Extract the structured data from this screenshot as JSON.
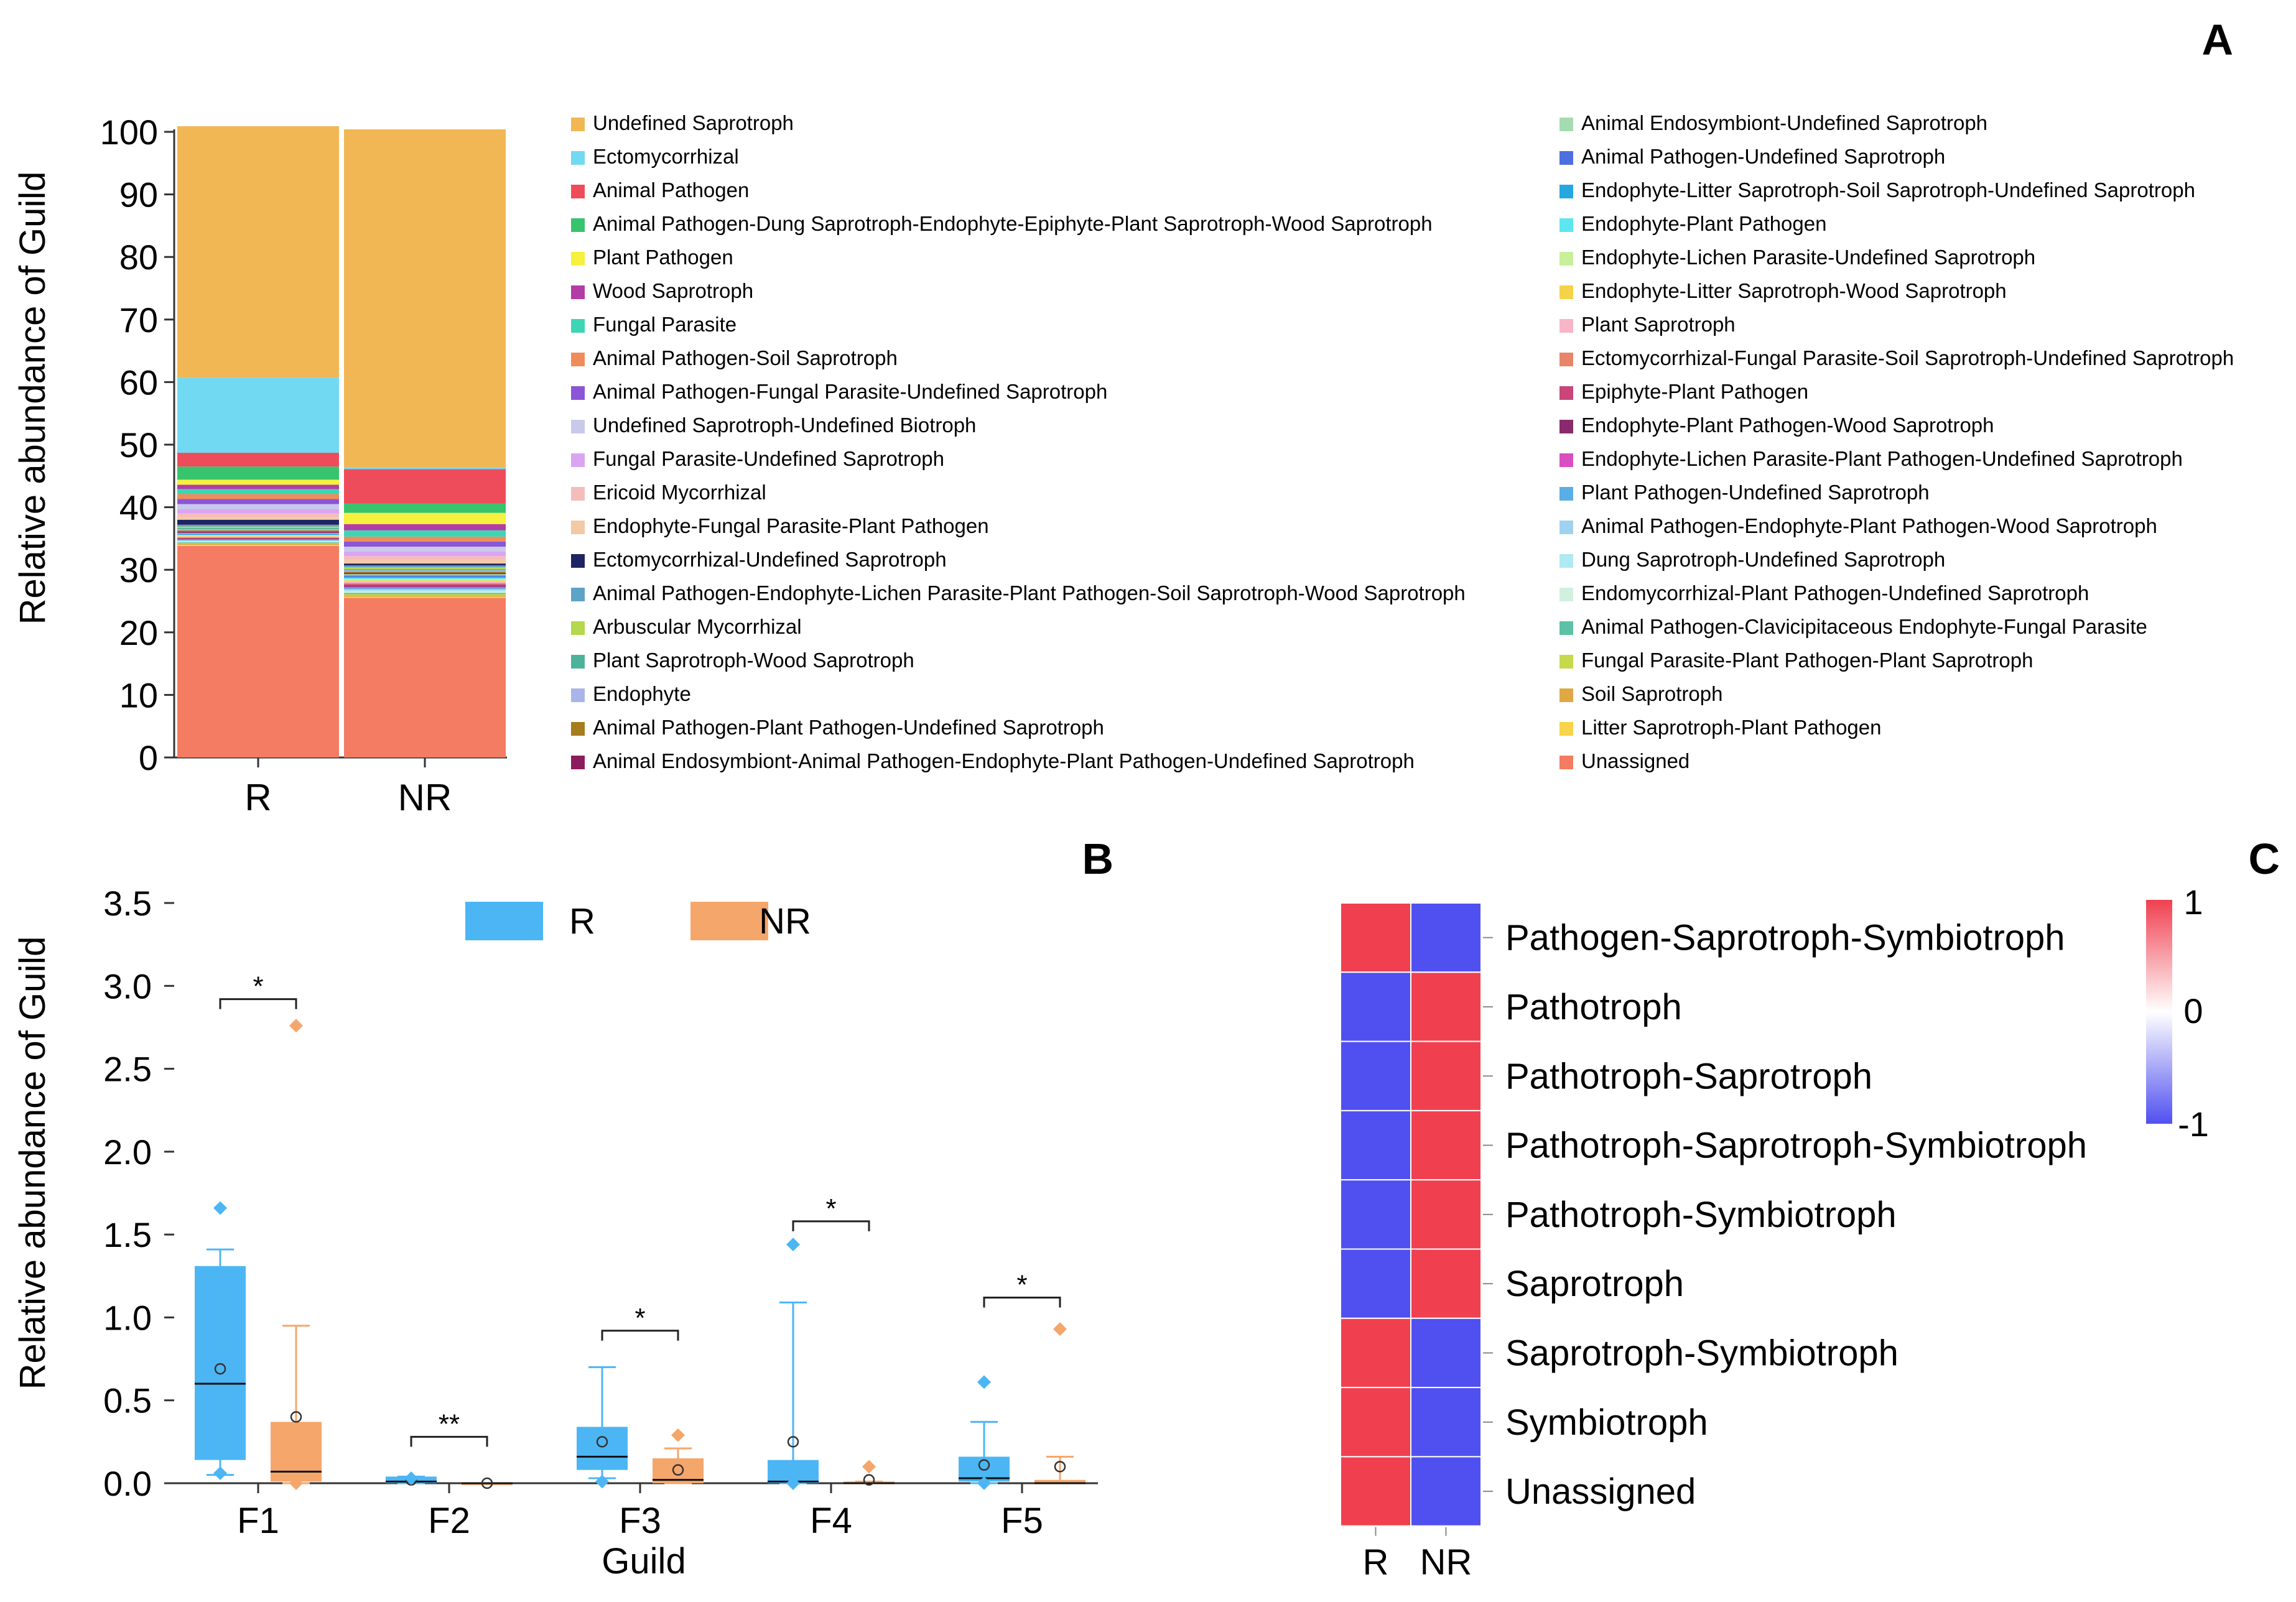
{
  "panel_labels": [
    "A",
    "B",
    "C"
  ],
  "chart_data": [
    {
      "id": "A",
      "type": "bar",
      "stacked": true,
      "title": "",
      "xlabel": "",
      "ylabel": "Relative abundance of Guild",
      "ylim": [
        0,
        100
      ],
      "yticks": [
        0,
        10,
        20,
        30,
        40,
        50,
        60,
        70,
        80,
        90,
        100
      ],
      "categories": [
        "R",
        "NR"
      ],
      "series": [
        {
          "name": "Unassigned",
          "color": "#f47c63",
          "values": [
            33.8,
            25.5
          ]
        },
        {
          "name": "Litter Saprotroph-Plant Pathogen",
          "color": "#f7d449",
          "values": [
            0.2,
            0.2
          ]
        },
        {
          "name": "Soil Saprotroph",
          "color": "#e0a843",
          "values": [
            0.2,
            0.2
          ]
        },
        {
          "name": "Fungal Parasite-Plant Pathogen-Plant Saprotroph",
          "color": "#c6d94a",
          "values": [
            0.1,
            0.2
          ]
        },
        {
          "name": "Animal Pathogen-Clavicipitaceous Endophyte-Fungal Parasite",
          "color": "#5cc1a6",
          "values": [
            0.1,
            0.2
          ]
        },
        {
          "name": "Endomycorrhizal-Plant Pathogen-Undefined Saprotroph",
          "color": "#d2f0e0",
          "values": [
            0.1,
            0.2
          ]
        },
        {
          "name": "Dung Saprotroph-Undefined Saprotroph",
          "color": "#aeeaf2",
          "values": [
            0.1,
            0.2
          ]
        },
        {
          "name": "Animal Pathogen-Endophyte-Plant Pathogen-Wood Saprotroph",
          "color": "#9fd2f0",
          "values": [
            0.1,
            0.2
          ]
        },
        {
          "name": "Plant Pathogen-Undefined Saprotroph",
          "color": "#5aaee6",
          "values": [
            0.1,
            0.2
          ]
        },
        {
          "name": "Endophyte-Lichen Parasite-Plant Pathogen-Undefined Saprotroph",
          "color": "#d94fc0",
          "values": [
            0.1,
            0.2
          ]
        },
        {
          "name": "Endophyte-Plant Pathogen-Wood Saprotroph",
          "color": "#8a2a6e",
          "values": [
            0.1,
            0.2
          ]
        },
        {
          "name": "Epiphyte-Plant Pathogen",
          "color": "#c9457a",
          "values": [
            0.1,
            0.2
          ]
        },
        {
          "name": "Ectomycorrhizal-Fungal Parasite-Soil Saprotroph-Undefined Saprotroph",
          "color": "#e8846a",
          "values": [
            0.1,
            0.2
          ]
        },
        {
          "name": "Plant Saprotroph",
          "color": "#f7b5c8",
          "values": [
            0.1,
            0.2
          ]
        },
        {
          "name": "Endophyte-Litter Saprotroph-Wood Saprotroph",
          "color": "#f5d24a",
          "values": [
            0.1,
            0.2
          ]
        },
        {
          "name": "Endophyte-Lichen Parasite-Undefined Saprotroph",
          "color": "#c8f09a",
          "values": [
            0.1,
            0.2
          ]
        },
        {
          "name": "Endophyte-Plant Pathogen",
          "color": "#5ee6ee",
          "values": [
            0.1,
            0.2
          ]
        },
        {
          "name": "Endophyte-Litter Saprotroph-Soil Saprotroph-Undefined Saprotroph",
          "color": "#26a7e0",
          "values": [
            0.1,
            0.2
          ]
        },
        {
          "name": "Animal Pathogen-Undefined Saprotroph",
          "color": "#4d6fe0",
          "values": [
            0.1,
            0.2
          ]
        },
        {
          "name": "Animal Endosymbiont-Undefined Saprotroph",
          "color": "#a4dcb0",
          "values": [
            0.1,
            0.2
          ]
        },
        {
          "name": "Animal Endosymbiont-Animal Pathogen-Endophyte-Plant Pathogen-Undefined Saprotroph",
          "color": "#8b1d5c",
          "values": [
            0.2,
            0.2
          ]
        },
        {
          "name": "Animal Pathogen-Plant Pathogen-Undefined Saprotroph",
          "color": "#a67c1c",
          "values": [
            0.2,
            0.2
          ]
        },
        {
          "name": "Endophyte",
          "color": "#a9b5ea",
          "values": [
            0.2,
            0.2
          ]
        },
        {
          "name": "Plant Saprotroph-Wood Saprotroph",
          "color": "#4cb39b",
          "values": [
            0.2,
            0.2
          ]
        },
        {
          "name": "Arbuscular Mycorrhizal",
          "color": "#b5d84c",
          "values": [
            0.2,
            0.3
          ]
        },
        {
          "name": "Animal Pathogen-Endophyte-Lichen Parasite-Plant Pathogen-Soil Saprotroph-Wood Saprotroph",
          "color": "#5ea3c7",
          "values": [
            0.3,
            0.3
          ]
        },
        {
          "name": "Ectomycorrhizal-Undefined Saprotroph",
          "color": "#1f2463",
          "values": [
            0.8,
            0.3
          ]
        },
        {
          "name": "Endophyte-Fungal Parasite-Plant Pathogen",
          "color": "#f3c9a6",
          "values": [
            0.4,
            0.6
          ]
        },
        {
          "name": "Ericoid Mycorrhizal",
          "color": "#f5bcbc",
          "values": [
            0.6,
            0.6
          ]
        },
        {
          "name": "Fungal Parasite-Undefined Saprotroph",
          "color": "#d9a5f2",
          "values": [
            0.7,
            0.7
          ]
        },
        {
          "name": "Undefined Saprotroph-Undefined Biotroph",
          "color": "#c9c9ec",
          "values": [
            0.8,
            0.8
          ]
        },
        {
          "name": "Animal Pathogen-Fungal Parasite-Undefined Saprotroph",
          "color": "#8a55d6",
          "values": [
            0.8,
            0.8
          ]
        },
        {
          "name": "Animal Pathogen-Soil Saprotroph",
          "color": "#ef8c5a",
          "values": [
            0.8,
            0.8
          ]
        },
        {
          "name": "Fungal Parasite",
          "color": "#3dd6b5",
          "values": [
            0.8,
            1.0
          ]
        },
        {
          "name": "Wood Saprotroph",
          "color": "#b33ca6",
          "values": [
            0.7,
            1.0
          ]
        },
        {
          "name": "Plant Pathogen",
          "color": "#f7f03c",
          "values": [
            0.8,
            1.8
          ]
        },
        {
          "name": "Animal Pathogen-Dung Saprotroph-Endophyte-Epiphyte-Plant Saprotroph-Wood Saprotroph",
          "color": "#37c46c",
          "values": [
            2.1,
            1.5
          ]
        },
        {
          "name": "Animal Pathogen",
          "color": "#ee4c5a",
          "values": [
            2.2,
            5.5
          ]
        },
        {
          "name": "Ectomycorrhizal",
          "color": "#72d9f2",
          "values": [
            12.0,
            0.3
          ]
        },
        {
          "name": "Undefined Saprotroph",
          "color": "#f2b755",
          "values": [
            40.2,
            54.0
          ]
        }
      ],
      "legend_order": [
        "Undefined Saprotroph",
        "Ectomycorrhizal",
        "Animal Pathogen",
        "Animal Pathogen-Dung Saprotroph-Endophyte-Epiphyte-Plant Saprotroph-Wood Saprotroph",
        "Plant Pathogen",
        "Wood Saprotroph",
        "Fungal Parasite",
        "Animal Pathogen-Soil Saprotroph",
        "Animal Pathogen-Fungal Parasite-Undefined Saprotroph",
        "Undefined Saprotroph-Undefined Biotroph",
        "Fungal Parasite-Undefined Saprotroph",
        "Ericoid Mycorrhizal",
        "Endophyte-Fungal Parasite-Plant Pathogen",
        "Ectomycorrhizal-Undefined Saprotroph",
        "Animal Pathogen-Endophyte-Lichen Parasite-Plant Pathogen-Soil Saprotroph-Wood Saprotroph",
        "Arbuscular Mycorrhizal",
        "Plant Saprotroph-Wood Saprotroph",
        "Endophyte",
        "Animal Pathogen-Plant Pathogen-Undefined Saprotroph",
        "Animal Endosymbiont-Animal Pathogen-Endophyte-Plant Pathogen-Undefined Saprotroph",
        "Animal Endosymbiont-Undefined Saprotroph",
        "Animal Pathogen-Undefined Saprotroph",
        "Endophyte-Litter Saprotroph-Soil Saprotroph-Undefined Saprotroph",
        "Endophyte-Plant Pathogen",
        "Endophyte-Lichen Parasite-Undefined Saprotroph",
        "Endophyte-Litter Saprotroph-Wood Saprotroph",
        "Plant Saprotroph",
        "Ectomycorrhizal-Fungal Parasite-Soil Saprotroph-Undefined Saprotroph",
        "Epiphyte-Plant Pathogen",
        "Endophyte-Plant Pathogen-Wood Saprotroph",
        "Endophyte-Lichen Parasite-Plant Pathogen-Undefined Saprotroph",
        "Plant Pathogen-Undefined Saprotroph",
        "Animal Pathogen-Endophyte-Plant Pathogen-Wood Saprotroph",
        "Dung Saprotroph-Undefined Saprotroph",
        "Endomycorrhizal-Plant Pathogen-Undefined Saprotroph",
        "Animal Pathogen-Clavicipitaceous Endophyte-Fungal Parasite",
        "Fungal Parasite-Plant Pathogen-Plant Saprotroph",
        "Soil Saprotroph",
        "Litter Saprotroph-Plant Pathogen",
        "Unassigned"
      ]
    },
    {
      "id": "B",
      "type": "box",
      "title": "",
      "xlabel": "Guild",
      "ylabel": "Relative abundance of Guild",
      "ylim": [
        0,
        3.5
      ],
      "yticks": [
        "0.0",
        "0.5",
        "1.0",
        "1.5",
        "2.0",
        "2.5",
        "3.0",
        "3.5"
      ],
      "categories": [
        "F1",
        "F2",
        "F3",
        "F4",
        "F5"
      ],
      "legend": [
        {
          "name": "R",
          "color": "#4cb6f5"
        },
        {
          "name": "NR",
          "color": "#f5a66b"
        }
      ],
      "series": [
        {
          "name": "R",
          "color": "#4cb6f5",
          "boxes": [
            {
              "min": 0.05,
              "q1": 0.14,
              "median": 0.6,
              "q3": 1.31,
              "max": 1.41,
              "mean": 0.69,
              "outliers": [
                1.66,
                0.06
              ]
            },
            {
              "min": 0.0,
              "q1": 0.0,
              "median": 0.01,
              "q3": 0.04,
              "max": 0.04,
              "mean": 0.02,
              "outliers": [
                0.03
              ]
            },
            {
              "min": 0.03,
              "q1": 0.08,
              "median": 0.16,
              "q3": 0.34,
              "max": 0.7,
              "mean": 0.25,
              "outliers": [
                0.01
              ]
            },
            {
              "min": 0.0,
              "q1": 0.0,
              "median": 0.01,
              "q3": 0.14,
              "max": 1.09,
              "mean": 0.25,
              "outliers": [
                1.44,
                0.0
              ]
            },
            {
              "min": 0.0,
              "q1": 0.01,
              "median": 0.03,
              "q3": 0.16,
              "max": 0.37,
              "mean": 0.11,
              "outliers": [
                0.61,
                0.0
              ]
            }
          ]
        },
        {
          "name": "NR",
          "color": "#f5a66b",
          "boxes": [
            {
              "min": 0.0,
              "q1": 0.01,
              "median": 0.07,
              "q3": 0.37,
              "max": 0.95,
              "mean": 0.4,
              "outliers": [
                2.76,
                0.0
              ]
            },
            {
              "min": 0.0,
              "q1": 0.0,
              "median": 0.0,
              "q3": 0.0,
              "max": 0.0,
              "mean": 0.0,
              "outliers": []
            },
            {
              "min": 0.0,
              "q1": 0.0,
              "median": 0.02,
              "q3": 0.15,
              "max": 0.21,
              "mean": 0.08,
              "outliers": [
                0.29
              ]
            },
            {
              "min": 0.0,
              "q1": 0.0,
              "median": 0.0,
              "q3": 0.01,
              "max": 0.01,
              "mean": 0.02,
              "outliers": [
                0.1
              ]
            },
            {
              "min": 0.0,
              "q1": 0.0,
              "median": 0.0,
              "q3": 0.02,
              "max": 0.16,
              "mean": 0.1,
              "outliers": [
                0.93
              ]
            }
          ]
        }
      ],
      "significance": [
        {
          "category": "F1",
          "label": "*",
          "y": 2.92
        },
        {
          "category": "F2",
          "label": "**",
          "y": 0.28
        },
        {
          "category": "F3",
          "label": "*",
          "y": 0.92
        },
        {
          "category": "F4",
          "label": "*",
          "y": 1.58
        },
        {
          "category": "F5",
          "label": "*",
          "y": 1.12
        }
      ]
    },
    {
      "id": "C",
      "type": "heatmap",
      "title": "",
      "columns": [
        "R",
        "NR"
      ],
      "rows": [
        "Pathogen-Saprotroph-Symbiotroph",
        "Pathotroph",
        "Pathotroph-Saprotroph",
        "Pathotroph-Saprotroph-Symbiotroph",
        "Pathotroph-Symbiotroph",
        "Saprotroph",
        "Saprotroph-Symbiotroph",
        "Symbiotroph",
        "Unassigned"
      ],
      "values": [
        [
          1,
          -1
        ],
        [
          -1,
          1
        ],
        [
          -1,
          1
        ],
        [
          -1,
          1
        ],
        [
          -1,
          1
        ],
        [
          -1,
          1
        ],
        [
          1,
          -1
        ],
        [
          1,
          -1
        ],
        [
          1,
          -1
        ]
      ],
      "colorscale": {
        "low": "#5050f0",
        "mid": "#ffffff",
        "high": "#f04050",
        "range": [
          -1,
          1
        ],
        "tick_labels": [
          "1",
          "0",
          "-1"
        ]
      }
    }
  ]
}
